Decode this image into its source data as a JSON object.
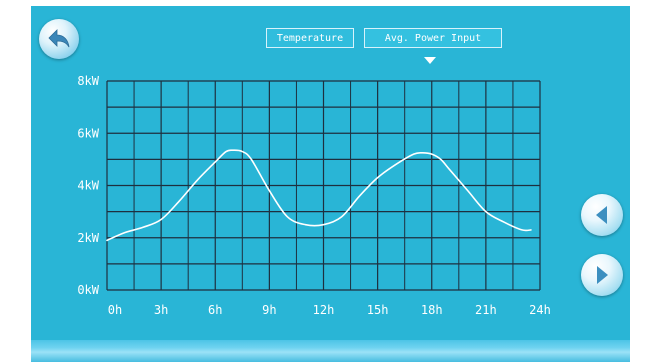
{
  "tabs": [
    {
      "label": "Temperature"
    },
    {
      "label": "Avg. Power Input"
    }
  ],
  "chart_data": {
    "type": "line",
    "x_unit": "h",
    "y_unit": "kW",
    "xlim": [
      0,
      24
    ],
    "ylim": [
      0,
      8
    ],
    "x_ticks": [
      "0h",
      "3h",
      "6h",
      "9h",
      "12h",
      "15h",
      "18h",
      "21h",
      "24h"
    ],
    "y_ticks": [
      "0kW",
      "2kW",
      "4kW",
      "6kW",
      "8kW"
    ],
    "grid": true,
    "series": [
      {
        "x": [
          0,
          1,
          2,
          3,
          4,
          5,
          6,
          6.6,
          7,
          7.5,
          8,
          9,
          10,
          11,
          12,
          13,
          14,
          15,
          16,
          17,
          17.5,
          18,
          18.5,
          19,
          20,
          21,
          22,
          23,
          23.5
        ],
        "y": [
          1.9,
          2.2,
          2.4,
          2.7,
          3.4,
          4.2,
          4.9,
          5.3,
          5.35,
          5.3,
          5.0,
          3.8,
          2.8,
          2.5,
          2.5,
          2.8,
          3.6,
          4.3,
          4.8,
          5.2,
          5.25,
          5.2,
          5.0,
          4.6,
          3.8,
          3.0,
          2.6,
          2.3,
          2.3
        ]
      }
    ],
    "line_color": "#ffffff"
  },
  "colors": {
    "panel_bg": "#29b5d6",
    "grid": "#1e2f3f",
    "text": "#ffffff"
  },
  "icons": {
    "back": "back-arrow-icon",
    "prev": "triangle-left-icon",
    "next": "triangle-right-icon"
  }
}
